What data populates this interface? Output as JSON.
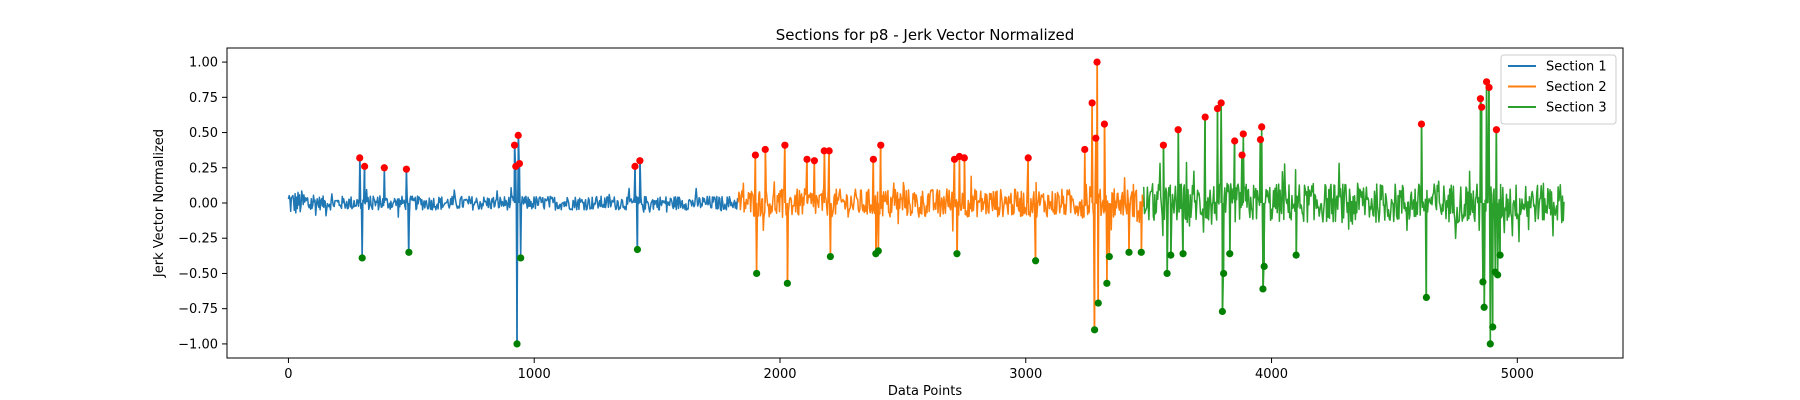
{
  "chart_data": {
    "type": "line",
    "title": "Sections for p8 - Jerk Vector Normalized",
    "xlabel": "Data Points",
    "ylabel": "Jerk Vector Normalized",
    "xlim": [
      -250,
      5430
    ],
    "ylim": [
      -1.1,
      1.1
    ],
    "x_ticks": [
      0,
      1000,
      2000,
      3000,
      4000,
      5000
    ],
    "x_tick_labels": [
      "0",
      "1000",
      "2000",
      "3000",
      "4000",
      "5000"
    ],
    "y_ticks": [
      1.0,
      0.75,
      0.5,
      0.25,
      0.0,
      -0.25,
      -0.5,
      -0.75,
      -1.0
    ],
    "y_tick_labels": [
      "1.00",
      "0.75",
      "0.50",
      "0.25",
      "0.00",
      "−0.25",
      "−0.50",
      "−0.75",
      "−1.00"
    ],
    "grid": false,
    "legend_position": "top-right",
    "series": [
      {
        "name": "Section 1",
        "color": "#1f77b4",
        "x_range": [
          0,
          1830
        ],
        "base_amplitude": 0.05,
        "spikes": [
          {
            "x": 290,
            "y": 0.32
          },
          {
            "x": 300,
            "y": -0.39
          },
          {
            "x": 310,
            "y": 0.26
          },
          {
            "x": 390,
            "y": 0.25
          },
          {
            "x": 480,
            "y": 0.24
          },
          {
            "x": 490,
            "y": -0.35
          },
          {
            "x": 920,
            "y": 0.41
          },
          {
            "x": 925,
            "y": 0.26
          },
          {
            "x": 930,
            "y": -1.0
          },
          {
            "x": 935,
            "y": 0.48
          },
          {
            "x": 940,
            "y": 0.28
          },
          {
            "x": 945,
            "y": -0.39
          },
          {
            "x": 1410,
            "y": 0.26
          },
          {
            "x": 1420,
            "y": -0.33
          },
          {
            "x": 1430,
            "y": 0.3
          }
        ]
      },
      {
        "name": "Section 2",
        "color": "#ff7f0e",
        "x_range": [
          1830,
          3480
        ],
        "base_amplitude": 0.1,
        "spikes": [
          {
            "x": 1900,
            "y": 0.34
          },
          {
            "x": 1905,
            "y": -0.5
          },
          {
            "x": 1940,
            "y": 0.38
          },
          {
            "x": 2020,
            "y": 0.41
          },
          {
            "x": 2030,
            "y": -0.57
          },
          {
            "x": 2110,
            "y": 0.31
          },
          {
            "x": 2140,
            "y": 0.3
          },
          {
            "x": 2180,
            "y": 0.37
          },
          {
            "x": 2200,
            "y": 0.37
          },
          {
            "x": 2205,
            "y": -0.38
          },
          {
            "x": 2380,
            "y": 0.31
          },
          {
            "x": 2390,
            "y": -0.36
          },
          {
            "x": 2400,
            "y": -0.34
          },
          {
            "x": 2410,
            "y": 0.41
          },
          {
            "x": 2710,
            "y": 0.31
          },
          {
            "x": 2720,
            "y": -0.36
          },
          {
            "x": 2730,
            "y": 0.33
          },
          {
            "x": 2750,
            "y": 0.32
          },
          {
            "x": 3010,
            "y": 0.32
          },
          {
            "x": 3040,
            "y": -0.41
          },
          {
            "x": 3240,
            "y": 0.38
          },
          {
            "x": 3270,
            "y": 0.71
          },
          {
            "x": 3280,
            "y": -0.9
          },
          {
            "x": 3285,
            "y": 0.46
          },
          {
            "x": 3290,
            "y": 1.0
          },
          {
            "x": 3295,
            "y": -0.71
          },
          {
            "x": 3320,
            "y": 0.56
          },
          {
            "x": 3330,
            "y": -0.57
          },
          {
            "x": 3340,
            "y": -0.38
          },
          {
            "x": 3420,
            "y": -0.35
          },
          {
            "x": 3470,
            "y": -0.35
          }
        ]
      },
      {
        "name": "Section 3",
        "color": "#2ca02c",
        "x_range": [
          3480,
          5190
        ],
        "base_amplitude": 0.14,
        "spikes": [
          {
            "x": 3560,
            "y": 0.41
          },
          {
            "x": 3575,
            "y": -0.5
          },
          {
            "x": 3590,
            "y": -0.37
          },
          {
            "x": 3620,
            "y": 0.52
          },
          {
            "x": 3640,
            "y": -0.36
          },
          {
            "x": 3730,
            "y": 0.61
          },
          {
            "x": 3780,
            "y": 0.67
          },
          {
            "x": 3795,
            "y": 0.71
          },
          {
            "x": 3800,
            "y": -0.77
          },
          {
            "x": 3805,
            "y": -0.5
          },
          {
            "x": 3830,
            "y": -0.36
          },
          {
            "x": 3850,
            "y": 0.44
          },
          {
            "x": 3880,
            "y": 0.34
          },
          {
            "x": 3885,
            "y": 0.49
          },
          {
            "x": 3955,
            "y": 0.45
          },
          {
            "x": 3960,
            "y": 0.54
          },
          {
            "x": 3965,
            "y": -0.61
          },
          {
            "x": 3970,
            "y": -0.45
          },
          {
            "x": 4100,
            "y": -0.37
          },
          {
            "x": 4610,
            "y": 0.56
          },
          {
            "x": 4630,
            "y": -0.67
          },
          {
            "x": 4850,
            "y": 0.74
          },
          {
            "x": 4855,
            "y": 0.68
          },
          {
            "x": 4860,
            "y": -0.56
          },
          {
            "x": 4865,
            "y": -0.74
          },
          {
            "x": 4875,
            "y": 0.86
          },
          {
            "x": 4885,
            "y": 0.82
          },
          {
            "x": 4890,
            "y": -1.0
          },
          {
            "x": 4900,
            "y": -0.88
          },
          {
            "x": 4910,
            "y": -0.49
          },
          {
            "x": 4915,
            "y": 0.52
          },
          {
            "x": 4920,
            "y": -0.51
          },
          {
            "x": 4930,
            "y": -0.37
          }
        ]
      }
    ],
    "marker_colors": {
      "max": "#ff0000",
      "min": "#008000"
    }
  }
}
